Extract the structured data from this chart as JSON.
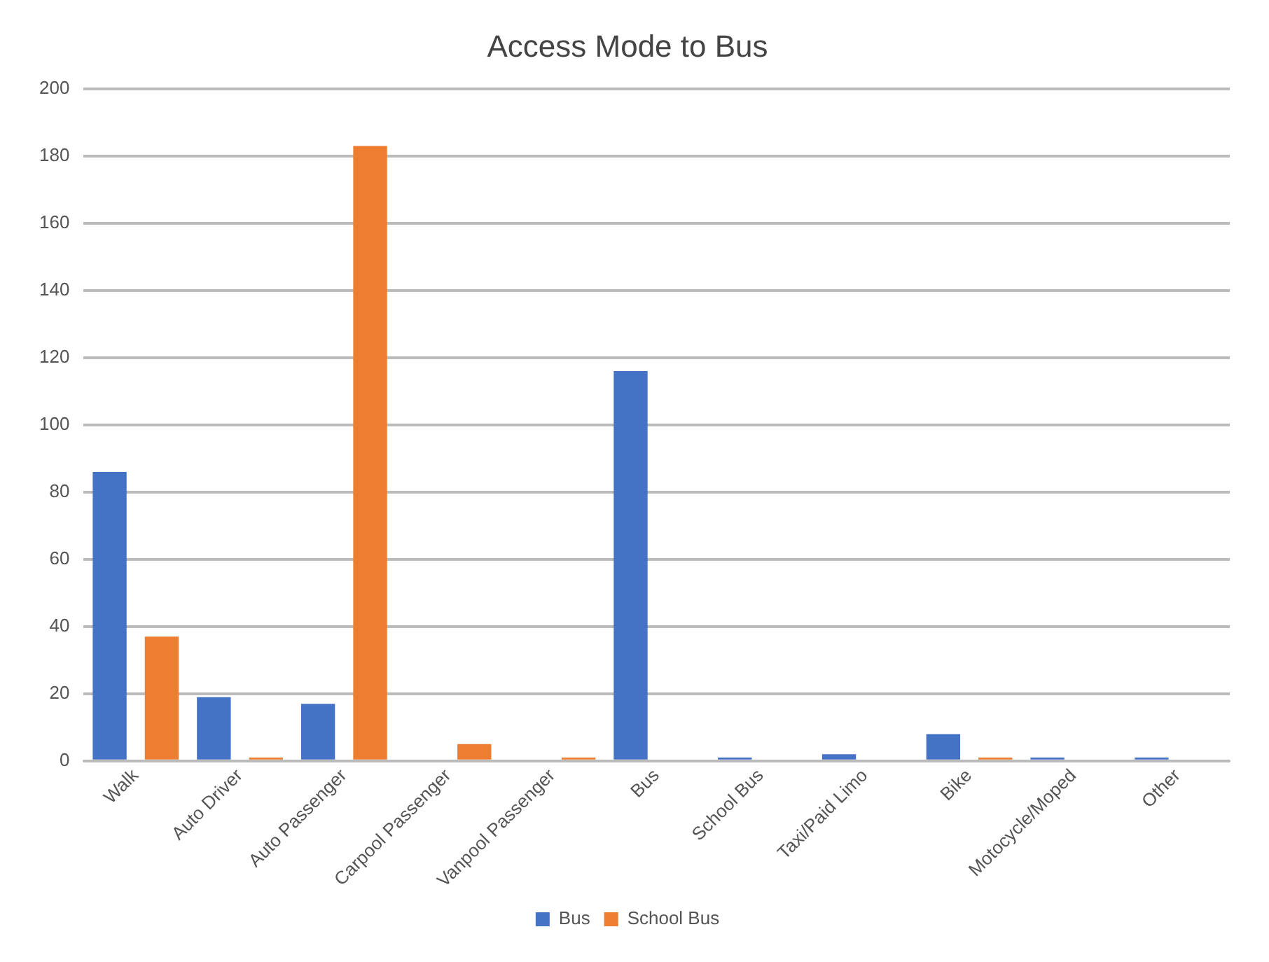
{
  "chart_data": {
    "type": "bar",
    "title": "Access Mode to Bus",
    "categories": [
      "Walk",
      "Auto Driver",
      "Auto Passenger",
      "Carpool Passenger",
      "Vanpool Passenger",
      "Bus",
      "School Bus",
      "Taxi/Paid Limo",
      "Bike",
      "Motocycle/Moped",
      "Other"
    ],
    "series": [
      {
        "name": "Bus",
        "color": "#4472c4",
        "values": [
          86,
          19,
          17,
          0,
          0,
          116,
          1,
          2,
          8,
          1,
          1
        ]
      },
      {
        "name": "School Bus",
        "color": "#ed7d31",
        "values": [
          37,
          1,
          183,
          5,
          1,
          0,
          0,
          0,
          1,
          0,
          0
        ]
      }
    ],
    "ylim": [
      0,
      200
    ],
    "yticks": [
      0,
      20,
      40,
      60,
      80,
      100,
      120,
      140,
      160,
      180,
      200
    ],
    "grid": "y",
    "legend": "bottom"
  }
}
